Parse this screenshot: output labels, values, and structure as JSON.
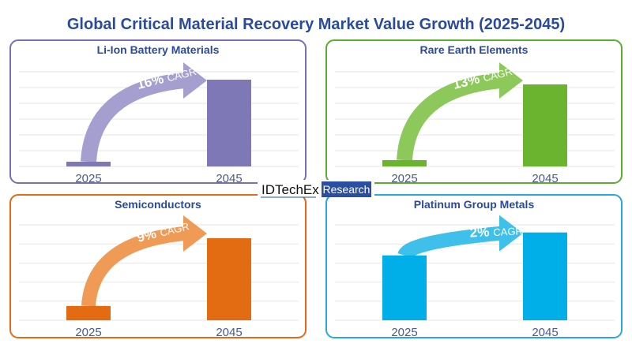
{
  "title": "Global Critical Material Recovery Market Value Growth (2025-2045)",
  "logo": {
    "brand": "IDTechEx",
    "badge": "Research",
    "badge_color": "#2a4fa0"
  },
  "chart_data": [
    {
      "type": "bar",
      "title": "Li-Ion Battery Materials",
      "categories": [
        "2025",
        "2045"
      ],
      "values": [
        0.3,
        5.5
      ],
      "ylim": [
        0,
        6
      ],
      "grid": true,
      "cagr": "16%",
      "cagr_label": "CAGR",
      "color": "#7f78b7",
      "arrow_color": "#a59fcf",
      "border_color": "#7b6fb3"
    },
    {
      "type": "bar",
      "title": "Rare Earth Elements",
      "categories": [
        "2025",
        "2045"
      ],
      "values": [
        0.4,
        5.2
      ],
      "ylim": [
        0,
        6
      ],
      "grid": true,
      "cagr": "13%",
      "cagr_label": "CAGR",
      "color": "#6ab42f",
      "arrow_color": "#8cc85a",
      "border_color": "#5aad2e"
    },
    {
      "type": "bar",
      "title": "Semiconductors",
      "categories": [
        "2025",
        "2045"
      ],
      "values": [
        0.75,
        4.3
      ],
      "ylim": [
        0,
        5
      ],
      "grid": true,
      "cagr": "9%",
      "cagr_label": "CAGR",
      "color": "#e36c12",
      "arrow_color": "#ef9a55",
      "border_color": "#e06c1a"
    },
    {
      "type": "bar",
      "title": "Platinum Group Metals",
      "categories": [
        "2025",
        "2045"
      ],
      "values": [
        3.4,
        4.6
      ],
      "ylim": [
        0,
        5
      ],
      "grid": true,
      "cagr": "2%",
      "cagr_label": "CAGR",
      "color": "#00aee8",
      "arrow_color": "#3fc0ea",
      "border_color": "#29a8e0"
    }
  ]
}
